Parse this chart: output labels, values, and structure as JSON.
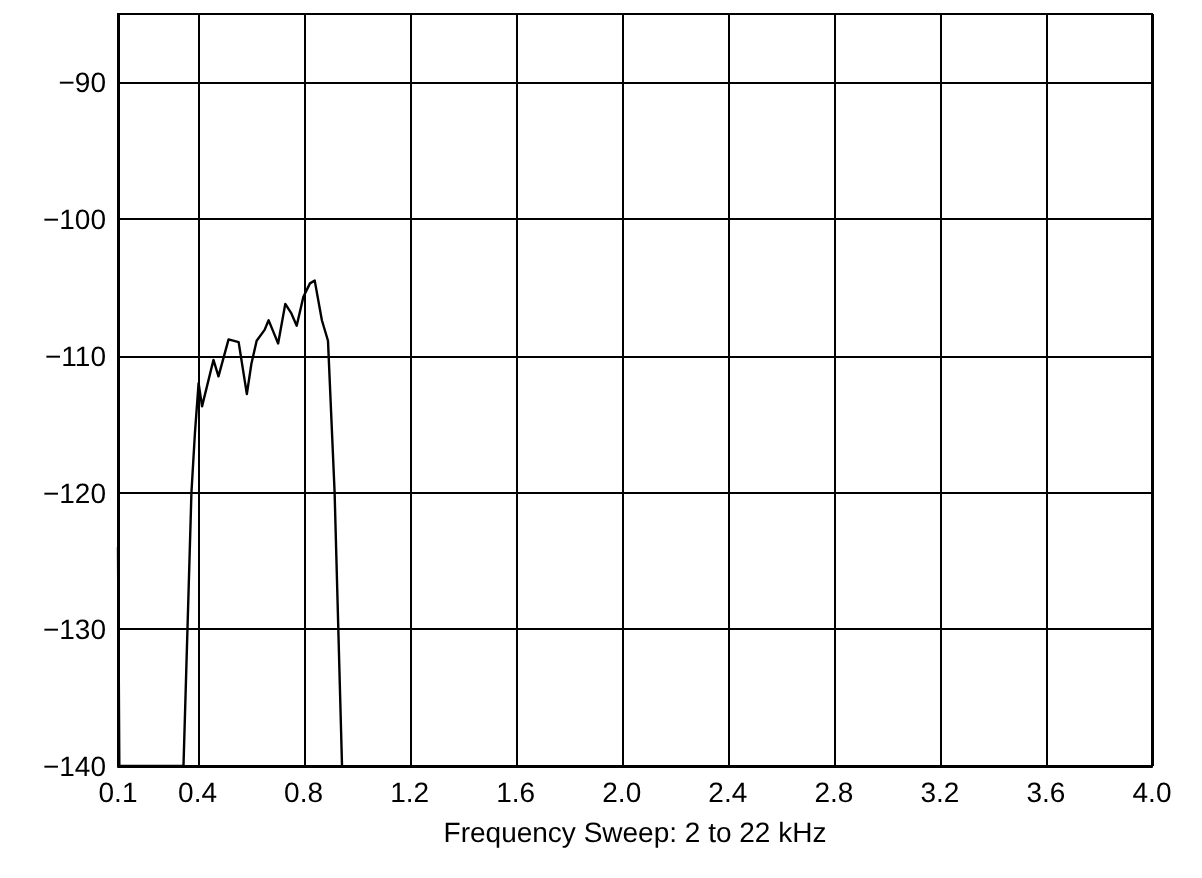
{
  "chart_data": {
    "type": "line",
    "xlabel": "Frequency Sweep: 2 to 22 kHz",
    "x": [
      0.1,
      0.105,
      0.347,
      0.377,
      0.39,
      0.404,
      0.417,
      0.46,
      0.479,
      0.517,
      0.555,
      0.586,
      0.603,
      0.623,
      0.653,
      0.668,
      0.683,
      0.704,
      0.731,
      0.754,
      0.774,
      0.799,
      0.824,
      0.842,
      0.869,
      0.892,
      0.917,
      0.945
    ],
    "series": [
      {
        "color": "#000000",
        "values": [
          -124,
          -140,
          -140,
          -120,
          -115.7,
          -112,
          -113.7,
          -110.3,
          -111.5,
          -108.8,
          -109,
          -112.8,
          -110.6,
          -108.9,
          -108.1,
          -107.4,
          -108.1,
          -109.1,
          -106.2,
          -106.9,
          -107.8,
          -105.7,
          -104.7,
          -104.5,
          -107.4,
          -108.9,
          -120,
          -140
        ]
      }
    ],
    "xlim": [
      0.1,
      4
    ],
    "xticks": [
      0.1,
      0.4,
      0.8,
      1.2,
      1.6,
      {
        "value": 2,
        "label": "2.0"
      },
      2.4,
      2.8,
      3.2,
      3.6,
      {
        "value": 4,
        "label": "4.0"
      }
    ],
    "ylim": [
      -140,
      -85
    ],
    "yticks": [
      {
        "value": -140,
        "label": "−140"
      },
      {
        "value": -130,
        "label": "−130"
      },
      {
        "value": -120,
        "label": "−120"
      },
      {
        "value": -110,
        "label": "−110"
      },
      {
        "value": -100,
        "label": "−100"
      },
      {
        "value": -90,
        "label": "−90"
      }
    ],
    "grid": true,
    "marker": "none",
    "line_style": "solid"
  }
}
